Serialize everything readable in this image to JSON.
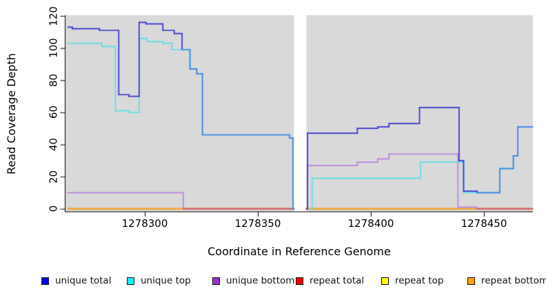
{
  "chart_data": {
    "type": "line",
    "style": "step-after",
    "title": "",
    "xlabel": "Coordinate in Reference Genome",
    "ylabel": "Read Coverage Depth",
    "xlim": [
      1278265,
      1278472
    ],
    "ylim": [
      0,
      120
    ],
    "x_ticks": [
      1278300,
      1278350,
      1278400,
      1278450
    ],
    "y_ticks": [
      0,
      20,
      40,
      60,
      80,
      100,
      120
    ],
    "grid": false,
    "legend_position": "bottom",
    "panel_bg": "#D9D9D9",
    "no_data_gap": {
      "x_start": 1278366,
      "x_end": 1278371.5
    },
    "series": [
      {
        "name": "repeat total",
        "legend_color": "#EE0000",
        "line_color": "#DD2222",
        "segments": [
          {
            "end_x": 1278366,
            "points": [
              [
                1278266,
                0
              ]
            ]
          },
          {
            "end_x": 1278471.5,
            "points": [
              [
                1278371.5,
                0
              ]
            ]
          }
        ]
      },
      {
        "name": "repeat top",
        "legend_color": "#FFFF00",
        "line_color": "#F0E040",
        "segments": [
          {
            "end_x": 1278366,
            "points": [
              [
                1278266,
                0
              ]
            ]
          },
          {
            "end_x": 1278471.5,
            "points": [
              [
                1278371.5,
                0
              ]
            ]
          }
        ]
      },
      {
        "name": "repeat bottom",
        "legend_color": "#FFA500",
        "line_color": "#FFA41C",
        "segments": [
          {
            "end_x": 1278366,
            "points": [
              [
                1278266,
                0
              ]
            ]
          },
          {
            "end_x": 1278471.5,
            "points": [
              [
                1278371.5,
                0
              ]
            ]
          }
        ]
      },
      {
        "name": "unique bottom",
        "legend_color": "#9932CC",
        "line_color": "#B983DC",
        "overlap_with": "repeat bottom",
        "overlap_color": "#C7508A",
        "segments": [
          {
            "end_x": 1278366,
            "points": [
              [
                1278266,
                10
              ],
              [
                1278317,
                0
              ]
            ]
          },
          {
            "end_x": 1278471.5,
            "points": [
              [
                1278371.8,
                0
              ],
              [
                1278372,
                27
              ],
              [
                1278394,
                29
              ],
              [
                1278403,
                31
              ],
              [
                1278408,
                34
              ],
              [
                1278438.5,
                1
              ],
              [
                1278447,
                0
              ]
            ]
          }
        ]
      },
      {
        "name": "unique top",
        "legend_color": "#00FFFF",
        "line_color": "#5CDFE4",
        "segments": [
          {
            "end_x": 1278366,
            "points": [
              [
                1278266,
                103
              ],
              [
                1278281,
                101
              ],
              [
                1278287,
                61
              ],
              [
                1278293,
                60
              ],
              [
                1278297.5,
                106
              ],
              [
                1278301,
                104
              ],
              [
                1278308,
                103
              ],
              [
                1278312,
                99
              ],
              [
                1278320,
                87
              ],
              [
                1278323,
                84
              ],
              [
                1278325.5,
                46
              ],
              [
                1278364,
                44
              ],
              [
                1278365.5,
                0
              ]
            ]
          },
          {
            "end_x": 1278471.5,
            "points": [
              [
                1278373.5,
                0
              ],
              [
                1278374,
                19
              ],
              [
                1278422,
                29
              ],
              [
                1278441,
                10
              ],
              [
                1278457,
                25
              ],
              [
                1278463,
                33
              ],
              [
                1278465,
                51
              ]
            ]
          }
        ]
      },
      {
        "name": "unique total",
        "legend_color": "#0000EE",
        "line_color": "#3333CE",
        "overlap_with": "unique top",
        "overlap_color": "#3D80E2",
        "segments": [
          {
            "end_x": 1278366,
            "points": [
              [
                1278266,
                113
              ],
              [
                1278268,
                112
              ],
              [
                1278280,
                111
              ],
              [
                1278288.5,
                71
              ],
              [
                1278293,
                70
              ],
              [
                1278297.5,
                116
              ],
              [
                1278300.5,
                115
              ],
              [
                1278308,
                111
              ],
              [
                1278313,
                109
              ],
              [
                1278316.5,
                99
              ],
              [
                1278320,
                87
              ],
              [
                1278323,
                84
              ],
              [
                1278325.5,
                46
              ],
              [
                1278364,
                44
              ],
              [
                1278365.5,
                0
              ]
            ]
          },
          {
            "end_x": 1278471.5,
            "points": [
              [
                1278371.5,
                0
              ],
              [
                1278372,
                47
              ],
              [
                1278394,
                50
              ],
              [
                1278403,
                51
              ],
              [
                1278408,
                53
              ],
              [
                1278421.5,
                63
              ],
              [
                1278439,
                30
              ],
              [
                1278441,
                11
              ],
              [
                1278447,
                10
              ],
              [
                1278457,
                25
              ],
              [
                1278463,
                33
              ],
              [
                1278465,
                51
              ]
            ]
          }
        ]
      }
    ]
  },
  "legend": {
    "items": [
      {
        "label": "unique total",
        "color": "#0000EE"
      },
      {
        "label": "unique top",
        "color": "#00FFFF"
      },
      {
        "label": "unique bottom",
        "color": "#9932CC"
      },
      {
        "label": "repeat total",
        "color": "#EE0000"
      },
      {
        "label": "repeat top",
        "color": "#FFFF00"
      },
      {
        "label": "repeat bottom",
        "color": "#FFA500"
      }
    ]
  }
}
